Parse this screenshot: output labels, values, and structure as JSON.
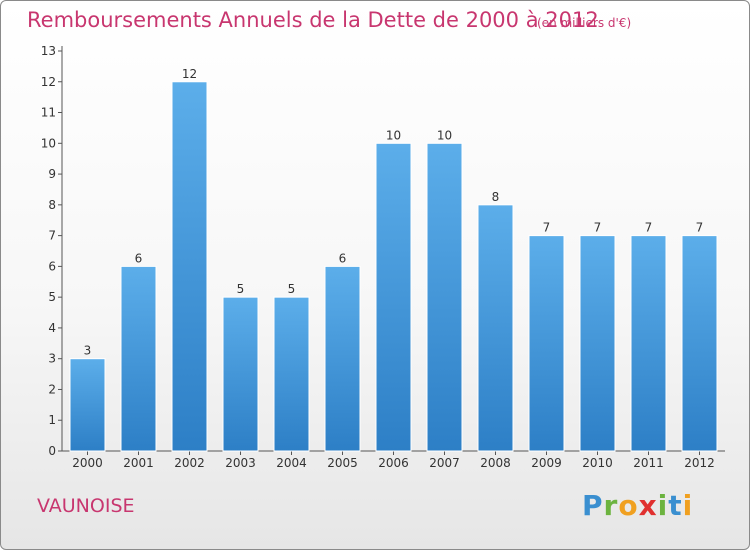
{
  "chart_data": {
    "type": "bar",
    "title": "Remboursements Annuels de la Dette de 2000 à 2012",
    "subtitle": "(en milliers d'€)",
    "categories": [
      "2000",
      "2001",
      "2002",
      "2003",
      "2004",
      "2005",
      "2006",
      "2007",
      "2008",
      "2009",
      "2010",
      "2011",
      "2012"
    ],
    "values": [
      3,
      6,
      12,
      5,
      5,
      6,
      10,
      10,
      8,
      7,
      7,
      7,
      7
    ],
    "ylim": [
      0,
      13
    ],
    "yticks": [
      0,
      1,
      2,
      3,
      4,
      5,
      6,
      7,
      8,
      9,
      10,
      11,
      12,
      13
    ],
    "grid": false,
    "bar_color": "#3e92d8",
    "bar_color_light": "#5caeea"
  },
  "place": "VAUNOISE",
  "brand": {
    "name": "Proxiti",
    "letters": [
      {
        "ch": "P",
        "color": "#3a8fd0"
      },
      {
        "ch": "r",
        "color": "#6cb33f"
      },
      {
        "ch": "o",
        "color": "#f0a020"
      },
      {
        "ch": "x",
        "color": "#e0302f"
      },
      {
        "ch": "i",
        "color": "#6cb33f"
      },
      {
        "ch": "t",
        "color": "#3a8fd0"
      },
      {
        "ch": "i",
        "color": "#f0a020"
      }
    ]
  },
  "colors": {
    "title": "#c8366f"
  }
}
